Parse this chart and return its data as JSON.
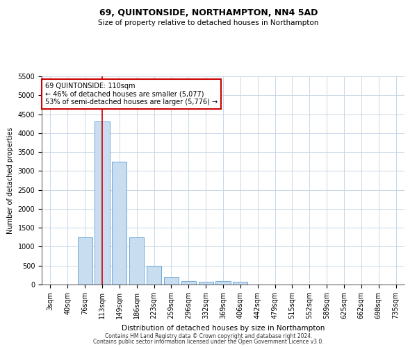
{
  "title": "69, QUINTONSIDE, NORTHAMPTON, NN4 5AD",
  "subtitle": "Size of property relative to detached houses in Northampton",
  "xlabel": "Distribution of detached houses by size in Northampton",
  "ylabel": "Number of detached properties",
  "footer_line1": "Contains HM Land Registry data © Crown copyright and database right 2024.",
  "footer_line2": "Contains public sector information licensed under the Open Government Licence v3.0.",
  "annotation_title": "69 QUINTONSIDE: 110sqm",
  "annotation_line1": "← 46% of detached houses are smaller (5,077)",
  "annotation_line2": "53% of semi-detached houses are larger (5,776) →",
  "vline_index": 3,
  "categories": [
    "3sqm",
    "40sqm",
    "76sqm",
    "113sqm",
    "149sqm",
    "186sqm",
    "223sqm",
    "259sqm",
    "296sqm",
    "332sqm",
    "369sqm",
    "406sqm",
    "442sqm",
    "479sqm",
    "515sqm",
    "552sqm",
    "589sqm",
    "625sqm",
    "662sqm",
    "698sqm",
    "735sqm"
  ],
  "values": [
    0,
    0,
    1250,
    4300,
    3250,
    1250,
    500,
    200,
    100,
    75,
    100,
    75,
    0,
    0,
    0,
    0,
    0,
    0,
    0,
    0,
    0
  ],
  "bar_color": "#c9ddf0",
  "bar_edge_color": "#5a9fd4",
  "vline_color": "#cc0000",
  "annotation_box_edge_color": "#cc0000",
  "background_color": "#ffffff",
  "grid_color": "#c8d8e8",
  "ylim": [
    0,
    5500
  ],
  "yticks": [
    0,
    500,
    1000,
    1500,
    2000,
    2500,
    3000,
    3500,
    4000,
    4500,
    5000,
    5500
  ],
  "title_fontsize": 9,
  "subtitle_fontsize": 7.5,
  "xlabel_fontsize": 7.5,
  "ylabel_fontsize": 7,
  "tick_fontsize": 7,
  "annotation_fontsize": 7,
  "footer_fontsize": 5.5
}
